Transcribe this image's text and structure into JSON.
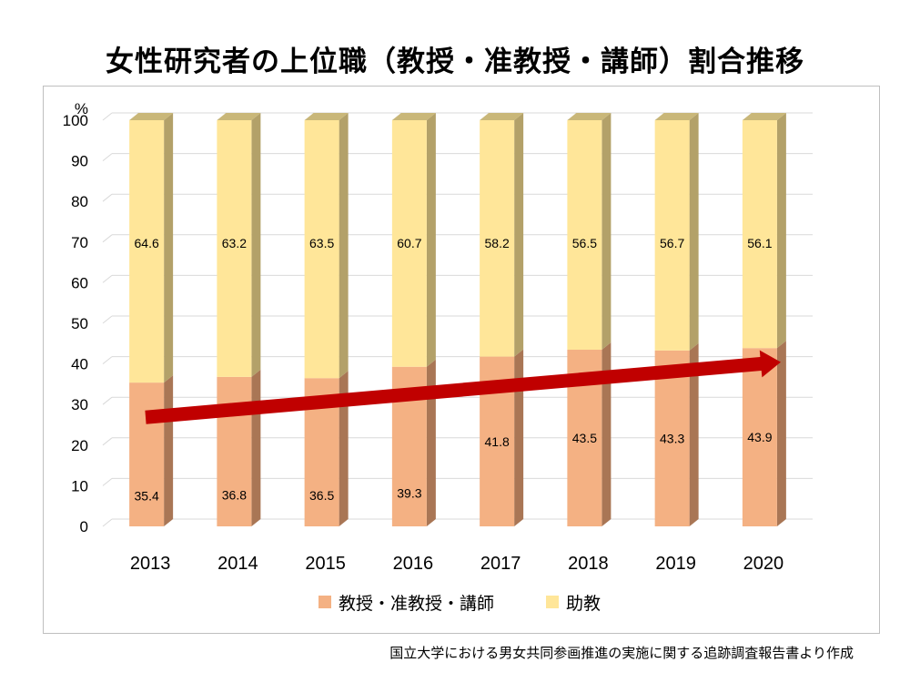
{
  "title": "女性研究者の上位職（教授・准教授・講師）割合推移",
  "source_note": "国立大学における男女共同参画推進の実施に関する追跡調査報告書より作成",
  "colors": {
    "series_0_front": "#f4b183",
    "series_0_side": "#a97655",
    "series_0_top": "#c48a62",
    "series_1_front": "#ffe699",
    "series_1_side": "#b3a169",
    "series_1_top": "#c9b779",
    "trend_arrow": "#c00000",
    "gridline": "#d9d9d9"
  },
  "chart_data": {
    "type": "bar",
    "stacked": true,
    "style": "3d-column",
    "categories": [
      "2013",
      "2014",
      "2015",
      "2016",
      "2017",
      "2018",
      "2019",
      "2020"
    ],
    "series": [
      {
        "name": "教授・准教授・講師",
        "values": [
          35.4,
          36.8,
          36.5,
          39.3,
          41.8,
          43.5,
          43.3,
          43.9
        ]
      },
      {
        "name": "助教",
        "values": [
          64.6,
          63.2,
          63.5,
          60.7,
          58.2,
          56.5,
          56.7,
          56.1
        ]
      }
    ],
    "ylabel": "%",
    "ylim": [
      0,
      100
    ],
    "yticks": [
      "0",
      "10",
      "20",
      "30",
      "40",
      "50",
      "60",
      "70",
      "80",
      "90",
      "100"
    ],
    "grid": true,
    "legend_position": "bottom",
    "annotation": "upward trend arrow",
    "trend_arrow": {
      "from": 30,
      "to": 40
    }
  }
}
